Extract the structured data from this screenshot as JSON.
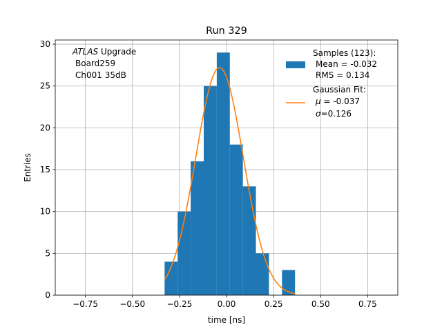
{
  "chart_data": {
    "type": "bar",
    "title": "Run 329",
    "xlabel": "time [ns]",
    "ylabel": "Entries",
    "xlim": [
      -0.91,
      0.91
    ],
    "ylim": [
      0,
      30.5
    ],
    "grid": true,
    "x_ticks": [
      -0.75,
      -0.5,
      -0.25,
      0.0,
      0.25,
      0.5,
      0.75
    ],
    "x_tick_labels": [
      "−0.75",
      "−0.50",
      "−0.25",
      "0.00",
      "0.25",
      "0.50",
      "0.75"
    ],
    "y_ticks": [
      0,
      5,
      10,
      15,
      20,
      25,
      30
    ],
    "y_tick_labels": [
      "0",
      "5",
      "10",
      "15",
      "20",
      "25",
      "30"
    ],
    "annotation": {
      "line1_italic": "ATLAS",
      "line1_rest": " Upgrade",
      "line2": "Board259",
      "line3": "Ch001 35dB"
    },
    "histogram": {
      "name": "Samples (123):",
      "color": "#1f77b4",
      "bin_edges": [
        -0.329,
        -0.2597,
        -0.1904,
        -0.1211,
        -0.0518,
        0.0175,
        0.0868,
        0.1561,
        0.2254,
        0.2947,
        0.364
      ],
      "values": [
        4,
        10,
        16,
        25,
        29,
        18,
        13,
        5,
        0,
        3
      ]
    },
    "fit": {
      "name": "Gaussian Fit:",
      "color": "#ff7f0e",
      "mu": -0.037,
      "sigma": 0.126,
      "amplitude": 27.2,
      "range": [
        -0.329,
        0.364
      ]
    },
    "legend": {
      "placement": "upper right",
      "samples_title": "Samples (123):",
      "samples_mean": "Mean = -0.032",
      "samples_rms": "RMS = 0.134",
      "fit_title": "Gaussian Fit:",
      "fit_mu_symbol": "μ",
      "fit_mu_value": " = -0.037",
      "fit_sigma_symbol": "σ",
      "fit_sigma_value": "=0.126"
    }
  }
}
